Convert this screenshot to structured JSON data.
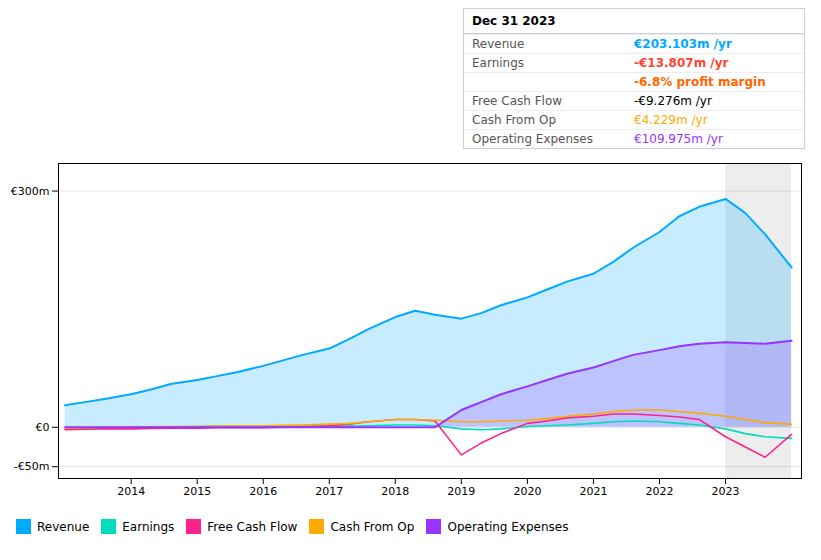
{
  "chart_data": {
    "type": "line",
    "x": [
      2013.0,
      2013.3,
      2013.6,
      2014.0,
      2014.3,
      2014.6,
      2015.0,
      2015.3,
      2015.6,
      2016.0,
      2016.3,
      2016.6,
      2017.0,
      2017.3,
      2017.6,
      2018.0,
      2018.3,
      2018.6,
      2019.0,
      2019.3,
      2019.6,
      2020.0,
      2020.3,
      2020.6,
      2021.0,
      2021.3,
      2021.6,
      2022.0,
      2022.3,
      2022.6,
      2023.0,
      2023.3,
      2023.6,
      2024.0
    ],
    "series": [
      {
        "name": "Revenue",
        "type": "area",
        "color": "#00aaff",
        "values": [
          28,
          32,
          36,
          42,
          48,
          55,
          60,
          65,
          70,
          78,
          85,
          92,
          100,
          112,
          125,
          140,
          148,
          143,
          138,
          145,
          155,
          165,
          175,
          185,
          195,
          210,
          228,
          248,
          268,
          280,
          290,
          272,
          245,
          203
        ]
      },
      {
        "name": "Earnings",
        "type": "line",
        "color": "#00ddbb",
        "values": [
          -2,
          -1.5,
          -1,
          -0.5,
          0,
          0.5,
          1,
          1.2,
          1.5,
          1.5,
          1.5,
          1.5,
          1.5,
          1.5,
          2,
          3,
          3,
          2,
          -2,
          -3,
          -2,
          1,
          2,
          3,
          5,
          7,
          8,
          7,
          5,
          3,
          -2,
          -8,
          -12,
          -14
        ]
      },
      {
        "name": "Free Cash Flow",
        "type": "line",
        "color": "#ff2288",
        "values": [
          -3,
          -2.5,
          -2,
          -2,
          -1.5,
          -1,
          -1,
          -0.5,
          -0.5,
          -0.5,
          0,
          0.5,
          2,
          4,
          7,
          10,
          10,
          8,
          -35,
          -20,
          -8,
          5,
          8,
          12,
          14,
          17,
          17,
          15,
          13,
          10,
          -12,
          -25,
          -38,
          -9
        ]
      },
      {
        "name": "Cash From Op",
        "type": "line",
        "color": "#ffaa00",
        "values": [
          -1,
          -0.5,
          0,
          0,
          0.5,
          1,
          1,
          1.5,
          2,
          2,
          2.5,
          3,
          4,
          5,
          7,
          10,
          10,
          9,
          7,
          7,
          8,
          9,
          11,
          14,
          17,
          20,
          22,
          22,
          20,
          18,
          14,
          10,
          6,
          4
        ]
      },
      {
        "name": "Operating Expenses",
        "type": "area",
        "color": "#9933ff",
        "values": [
          0,
          0,
          0,
          0,
          0,
          0,
          0,
          0,
          0,
          0,
          0,
          0,
          0,
          0,
          0,
          0,
          0,
          0,
          22,
          32,
          42,
          52,
          60,
          68,
          76,
          84,
          92,
          98,
          103,
          106,
          108,
          107,
          106,
          110
        ]
      }
    ],
    "xlim": [
      2012.9,
      2024.15
    ],
    "xticks": [
      2014,
      2015,
      2016,
      2017,
      2018,
      2019,
      2020,
      2021,
      2022,
      2023
    ],
    "ylim": [
      -65,
      335
    ],
    "yticks": [
      {
        "value": 300,
        "label": "€300m"
      },
      {
        "value": 0,
        "label": "€0"
      },
      {
        "value": -50,
        "label": "-€50m"
      }
    ],
    "grid": "y",
    "legend": "bottom",
    "shaded_x": [
      2023.0,
      2024.0
    ],
    "annotations": [
      {
        "text": "Dec 31 2023"
      },
      {
        "label": "Revenue",
        "text": "€203.103m /yr",
        "color": "#00aaff"
      },
      {
        "label": "Earnings",
        "text": "-€13.807m /yr",
        "color": "#ff4433"
      },
      {
        "text": "-6.8% profit margin",
        "color": "#ff6600"
      },
      {
        "label": "Free Cash Flow",
        "text": "-€9.276m /yr"
      },
      {
        "label": "Cash From Op",
        "text": "€4.229m /yr",
        "color": "#ffaa00"
      },
      {
        "label": "Operating Expenses",
        "text": "€109.975m /yr",
        "color": "#9933ff"
      }
    ]
  }
}
